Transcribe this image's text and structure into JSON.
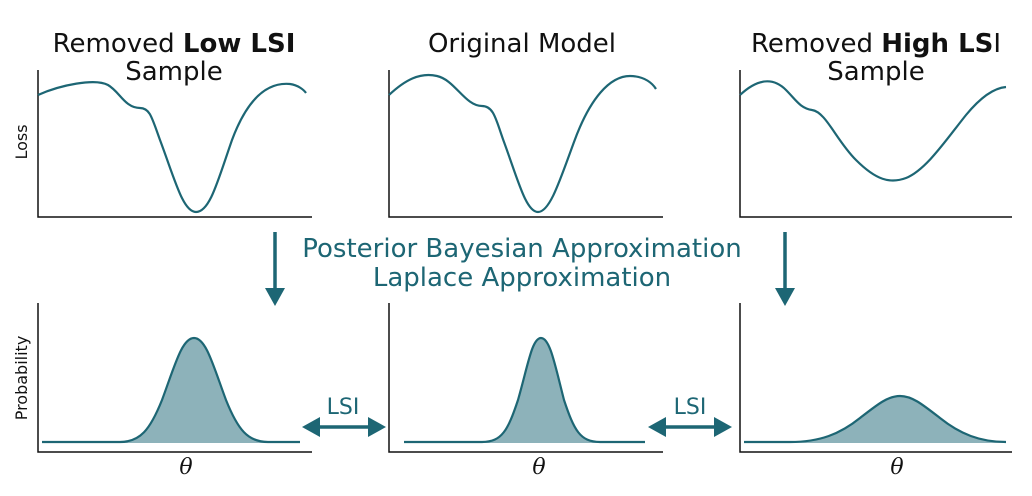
{
  "colors": {
    "curve": "#1d6674",
    "fill": "#8db2ba",
    "accent": "#1d6674",
    "axis": "#111111"
  },
  "panels": [
    {
      "id": "low",
      "title_line1_prefix": "Removed ",
      "title_line1_bold": "Low LSI",
      "title_line1_suffix": "",
      "title_line2": "Sample"
    },
    {
      "id": "orig",
      "title_line1_prefix": "Original Model",
      "title_line1_bold": "",
      "title_line1_suffix": "",
      "title_line2": ""
    },
    {
      "id": "high",
      "title_line1_prefix": "Removed ",
      "title_line1_bold": "High LS",
      "title_line1_suffix": "I",
      "title_line2": "Sample"
    }
  ],
  "axes": {
    "loss_label": "Loss",
    "probability_label": "Probability",
    "theta_label": "θ"
  },
  "center": {
    "line1": "Posterior Bayesian Approximation",
    "line2": "Laplace Approximation"
  },
  "lsi": {
    "left_label": "LSI",
    "right_label": "LSI"
  },
  "distributions": [
    {
      "id": "low",
      "shape": "narrow-tall"
    },
    {
      "id": "orig",
      "shape": "narrow-tall"
    },
    {
      "id": "high",
      "shape": "wide-short"
    }
  ]
}
